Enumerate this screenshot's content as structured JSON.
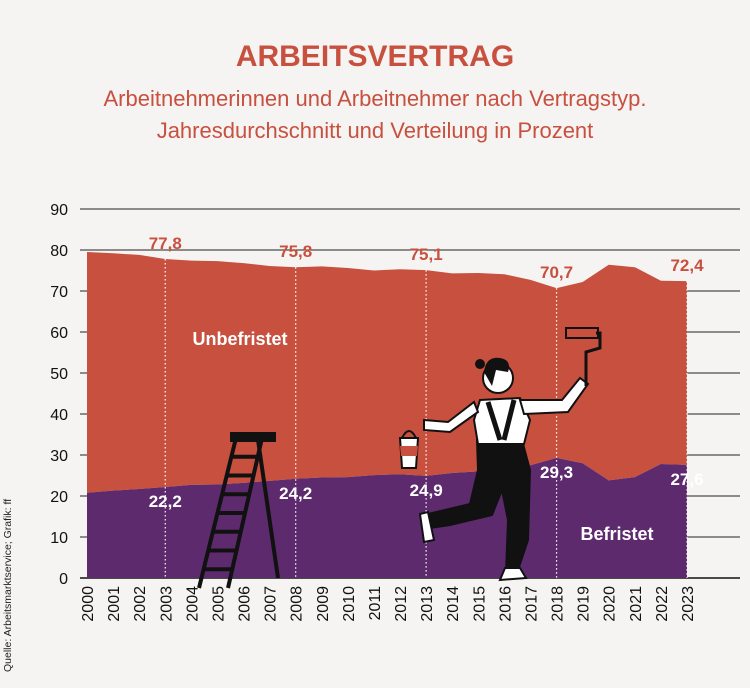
{
  "title": "ARBEITSVERTRAG",
  "subtitle_line1": "Arbeitnehmerinnen und Arbeitnehmer nach Vertragstyp.",
  "subtitle_line2": "Jahresdurchschnitt und Verteilung in Prozent",
  "source": "Quelle: Arbeitsmarktservice; Grafik: ff",
  "colors": {
    "unbefristet": "#c8503f",
    "befristet": "#5e2a6e",
    "text_accent": "#c8503f",
    "background": "#f5f4f2"
  },
  "chart_data": {
    "type": "area",
    "stacked": true,
    "x": [
      "2000",
      "2001",
      "2002",
      "2003",
      "2004",
      "2005",
      "2006",
      "2007",
      "2008",
      "2009",
      "2010",
      "2011",
      "2012",
      "2013",
      "2014",
      "2015",
      "2016",
      "2017",
      "2018",
      "2019",
      "2020",
      "2021",
      "2022",
      "2023"
    ],
    "series": [
      {
        "name": "Befristet",
        "values": [
          20.8,
          21.3,
          21.7,
          22.2,
          22.7,
          22.8,
          23.2,
          23.7,
          24.2,
          24.5,
          24.6,
          25.1,
          25.3,
          24.9,
          25.6,
          26.0,
          25.9,
          27.5,
          29.3,
          28.0,
          23.8,
          24.6,
          27.8,
          27.6
        ]
      },
      {
        "name": "Unbefristet",
        "values": [
          58.7,
          57.9,
          57.1,
          55.6,
          54.7,
          54.5,
          53.6,
          52.4,
          51.6,
          51.5,
          51.0,
          49.9,
          50.0,
          50.2,
          48.7,
          48.4,
          48.2,
          45.2,
          41.4,
          44.2,
          52.6,
          51.2,
          44.7,
          44.8
        ]
      }
    ],
    "annotations": {
      "unbefristet": [
        {
          "year": "2003",
          "label": "77,8"
        },
        {
          "year": "2008",
          "label": "75,8"
        },
        {
          "year": "2013",
          "label": "75,1"
        },
        {
          "year": "2018",
          "label": "70,7"
        },
        {
          "year": "2023",
          "label": "72,4"
        }
      ],
      "befristet": [
        {
          "year": "2003",
          "label": "22,2"
        },
        {
          "year": "2008",
          "label": "24,2"
        },
        {
          "year": "2013",
          "label": "24,9"
        },
        {
          "year": "2018",
          "label": "29,3"
        },
        {
          "year": "2023",
          "label": "27,6"
        }
      ]
    },
    "yticks": [
      "0",
      "10",
      "20",
      "30",
      "40",
      "50",
      "60",
      "70",
      "80",
      "90"
    ],
    "ylim": [
      0,
      90
    ],
    "grid": true,
    "legend": "inline"
  }
}
